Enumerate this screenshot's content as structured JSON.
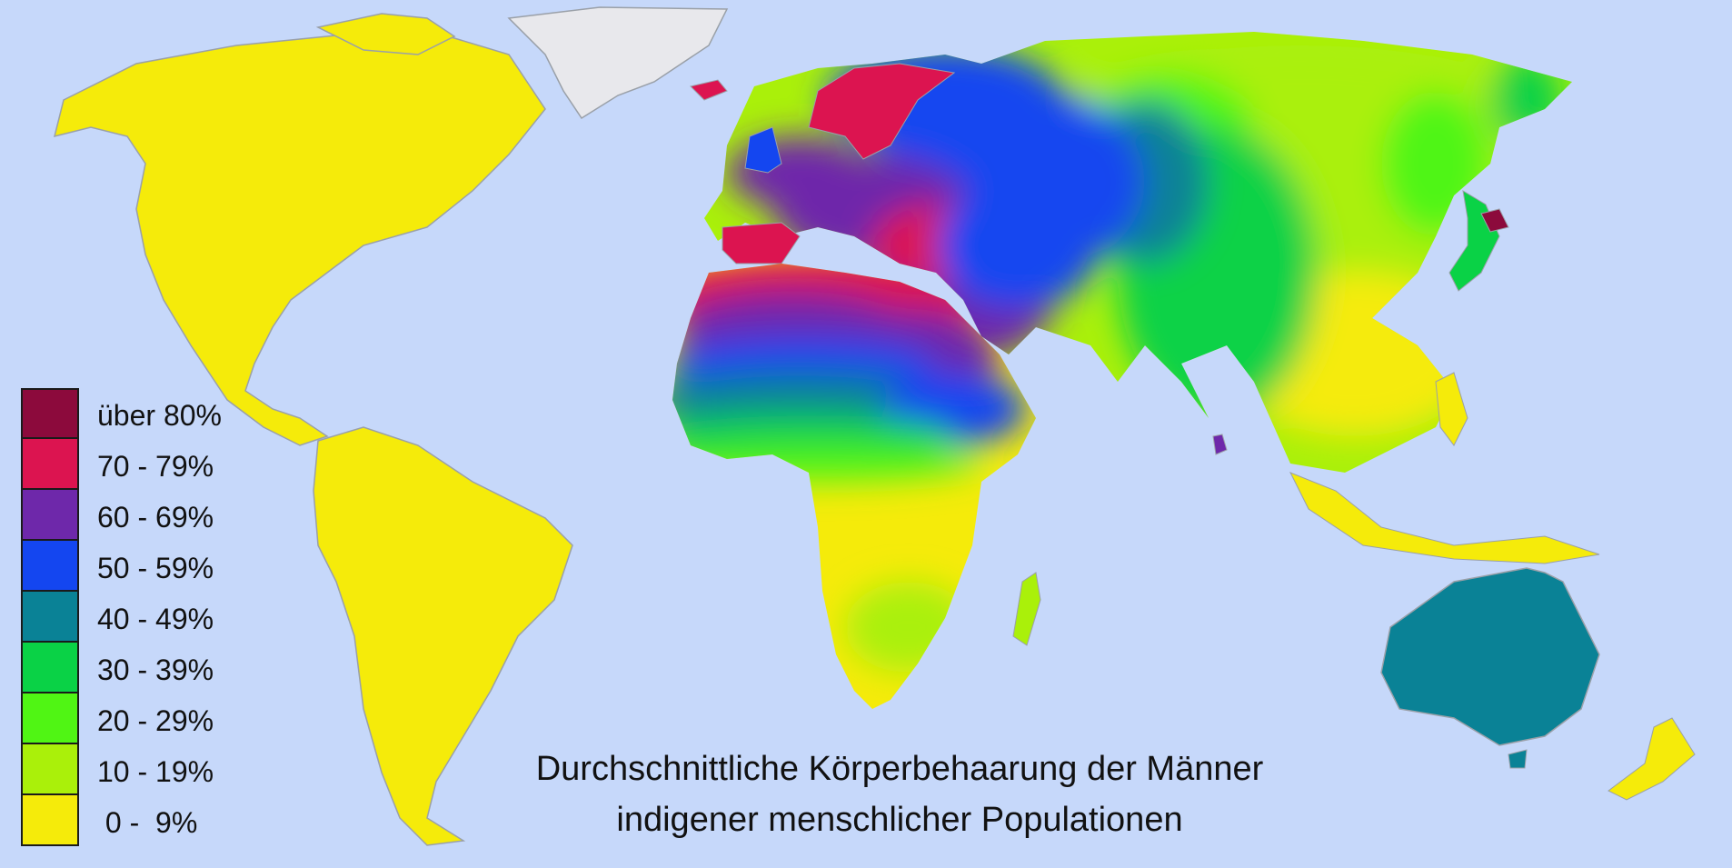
{
  "title": {
    "line1": "Durchschnittliche Körperbehaarung der Männer",
    "line2": "indigener menschlicher Populationen"
  },
  "legend": [
    {
      "label": "über 80%",
      "color": "#8c0a3c"
    },
    {
      "label": "70 - 79%",
      "color": "#dc1450"
    },
    {
      "label": "60 - 69%",
      "color": "#6e28aa"
    },
    {
      "label": "50 - 59%",
      "color": "#1446f0"
    },
    {
      "label": "40 - 49%",
      "color": "#0a8296"
    },
    {
      "label": "30 - 39%",
      "color": "#0ad246"
    },
    {
      "label": "20 - 29%",
      "color": "#50f514"
    },
    {
      "label": "10 - 19%",
      "color": "#aaf00a"
    },
    {
      "label": " 0 -  9%",
      "color": "#f5eb0a"
    }
  ],
  "colors": {
    "ocean": "#c6d8fa",
    "ice": "#e8e8ec",
    "border": "#9aa0a8"
  }
}
